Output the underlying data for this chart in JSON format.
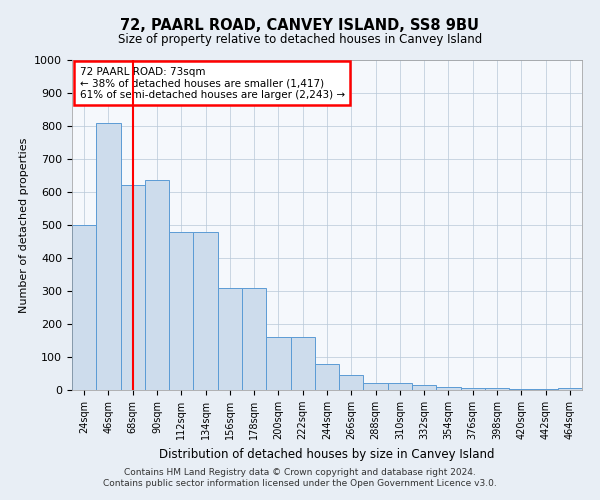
{
  "title1": "72, PAARL ROAD, CANVEY ISLAND, SS8 9BU",
  "title2": "Size of property relative to detached houses in Canvey Island",
  "xlabel": "Distribution of detached houses by size in Canvey Island",
  "ylabel": "Number of detached properties",
  "bins": [
    "24sqm",
    "46sqm",
    "68sqm",
    "90sqm",
    "112sqm",
    "134sqm",
    "156sqm",
    "178sqm",
    "200sqm",
    "222sqm",
    "244sqm",
    "266sqm",
    "288sqm",
    "310sqm",
    "332sqm",
    "354sqm",
    "376sqm",
    "398sqm",
    "420sqm",
    "442sqm",
    "464sqm"
  ],
  "values": [
    500,
    810,
    620,
    635,
    480,
    480,
    310,
    310,
    160,
    160,
    80,
    45,
    20,
    20,
    15,
    10,
    5,
    5,
    3,
    3,
    5
  ],
  "bar_color": "#cddcec",
  "bar_edge_color": "#5b9bd5",
  "vline_x": 2,
  "vline_color": "red",
  "annotation_title": "72 PAARL ROAD: 73sqm",
  "annotation_line1": "← 38% of detached houses are smaller (1,417)",
  "annotation_line2": "61% of semi-detached houses are larger (2,243) →",
  "annotation_box_color": "white",
  "annotation_box_edge_color": "red",
  "ylim": [
    0,
    1000
  ],
  "yticks": [
    0,
    100,
    200,
    300,
    400,
    500,
    600,
    700,
    800,
    900,
    1000
  ],
  "footer1": "Contains HM Land Registry data © Crown copyright and database right 2024.",
  "footer2": "Contains public sector information licensed under the Open Government Licence v3.0.",
  "background_color": "#e8eef5",
  "plot_background_color": "#f5f8fc",
  "grid_color": "#b8c8d8"
}
